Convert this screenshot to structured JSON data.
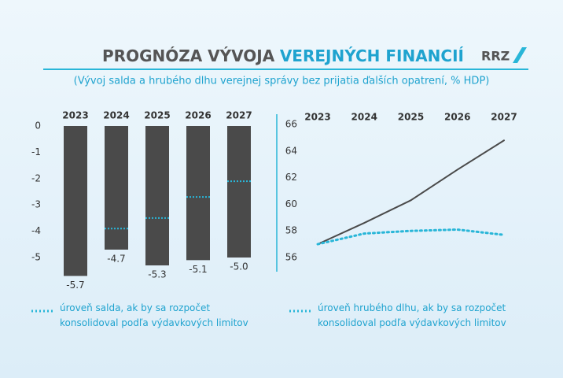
{
  "header": {
    "title": [
      "PROGNÓZA VÝVOJA",
      "VEREJNÝCH FINANCIÍ"
    ],
    "logo": "RRZ",
    "subtitle": "(Vývoj salda a hrubého dlhu verejnej správy bez prijatia ďalších opatrení,  % HDP)"
  },
  "chart_data": [
    {
      "type": "bar",
      "categories": [
        "2023",
        "2024",
        "2025",
        "2026",
        "2027"
      ],
      "ylim": [
        -6,
        0
      ],
      "yticks": [
        0,
        -1,
        -2,
        -3,
        -4,
        -5
      ],
      "series": [
        {
          "color": "#4a4a4a",
          "values": [
            -5.7,
            -4.7,
            -5.3,
            -5.1,
            -5.0
          ],
          "value_labels": [
            "-5.7",
            "-4.7",
            "-5.3",
            "-5.1",
            "-5.0"
          ]
        },
        {
          "name": "úroveň salda, ak by sa rozpočet konsolidoval podľa výdavkových limitov",
          "color": "#29b6d8",
          "style": "dotted",
          "values": [
            null,
            -3.9,
            -3.5,
            -2.7,
            -2.1
          ]
        }
      ]
    },
    {
      "type": "line",
      "categories": [
        "2023",
        "2024",
        "2025",
        "2026",
        "2027"
      ],
      "ylim": [
        55,
        66
      ],
      "yticks": [
        56,
        58,
        60,
        62,
        64,
        66
      ],
      "series": [
        {
          "color": "#4a4a4a",
          "values": [
            57.0,
            58.6,
            60.3,
            62.6,
            64.8
          ]
        },
        {
          "name": "úroveň hrubého dlhu, ak by sa rozpočet konsolidoval podľa výdavkových limitov",
          "color": "#29b6d8",
          "style": "dotted",
          "values": [
            57.0,
            57.8,
            58.0,
            58.1,
            57.7
          ]
        }
      ]
    }
  ]
}
